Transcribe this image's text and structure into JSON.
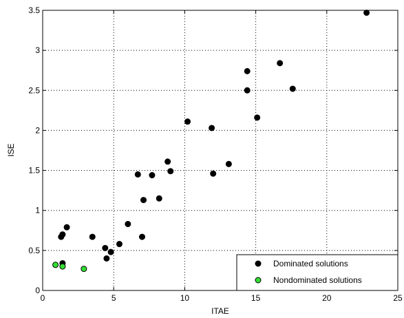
{
  "chart_data": {
    "type": "scatter",
    "xlabel": "ITAE",
    "ylabel": "ISE",
    "xlim": [
      0,
      25
    ],
    "ylim": [
      0,
      3.5
    ],
    "xticks": [
      0,
      5,
      10,
      15,
      20,
      25
    ],
    "yticks": [
      0,
      0.5,
      1,
      1.5,
      2,
      2.5,
      3,
      3.5
    ],
    "xtick_labels": [
      "0",
      "5",
      "10",
      "15",
      "20",
      "25"
    ],
    "ytick_labels": [
      "0",
      "0.5",
      "1",
      "1.5",
      "2",
      "2.5",
      "3",
      "3.5"
    ],
    "grid": true,
    "legend_position": "bottom-right",
    "series": [
      {
        "name": "Dominated solutions",
        "color": "#000000",
        "points": [
          [
            1.3,
            0.67
          ],
          [
            1.4,
            0.7
          ],
          [
            1.7,
            0.79
          ],
          [
            1.4,
            0.34
          ],
          [
            3.5,
            0.67
          ],
          [
            4.4,
            0.53
          ],
          [
            4.5,
            0.4
          ],
          [
            4.8,
            0.48
          ],
          [
            5.4,
            0.58
          ],
          [
            6.0,
            0.83
          ],
          [
            6.7,
            1.45
          ],
          [
            7.0,
            0.67
          ],
          [
            7.1,
            1.13
          ],
          [
            7.7,
            1.44
          ],
          [
            8.2,
            1.15
          ],
          [
            8.8,
            1.61
          ],
          [
            9.0,
            1.49
          ],
          [
            10.2,
            2.11
          ],
          [
            11.9,
            2.03
          ],
          [
            12.0,
            1.46
          ],
          [
            13.1,
            1.58
          ],
          [
            14.4,
            2.74
          ],
          [
            14.4,
            2.5
          ],
          [
            15.1,
            2.16
          ],
          [
            16.7,
            2.84
          ],
          [
            17.6,
            2.52
          ],
          [
            22.8,
            3.47
          ]
        ]
      },
      {
        "name": "Nondominated solutions",
        "color": "#33dd33",
        "points": [
          [
            0.9,
            0.32
          ],
          [
            1.4,
            0.3
          ],
          [
            2.9,
            0.27
          ]
        ]
      }
    ]
  }
}
